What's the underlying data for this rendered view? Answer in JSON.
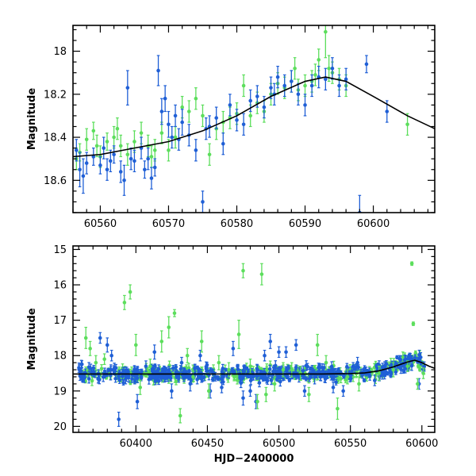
{
  "chart_data": [
    {
      "type": "scatter",
      "ylabel": "Magnitude",
      "xlabel": "",
      "xlim": [
        60556,
        60609
      ],
      "ylim": [
        18.75,
        17.88
      ],
      "y_inverted": true,
      "xticks": [
        60560,
        60570,
        60580,
        60590,
        60600
      ],
      "yticks": [
        18.0,
        18.2,
        18.4,
        18.6
      ],
      "ytick_labels": [
        "18",
        "18.2",
        "18.4",
        "18.6"
      ],
      "colors": {
        "blue": "#1f5fd6",
        "green": "#5cde5c",
        "curve": "#000000"
      },
      "model_curve": {
        "x": [
          60556,
          60560,
          60565,
          60570,
          60575,
          60580,
          60585,
          60590,
          60593,
          60596,
          60600,
          60605,
          60609
        ],
        "y": [
          18.49,
          18.48,
          18.45,
          18.42,
          18.37,
          18.3,
          18.21,
          18.14,
          18.12,
          18.14,
          18.21,
          18.3,
          18.36
        ]
      },
      "series": [
        {
          "points": [
            [
              60556.5,
              18.46,
              0.05
            ],
            [
              60557,
              18.55,
              0.08
            ],
            [
              60557.5,
              18.58,
              0.08
            ],
            [
              60558,
              18.52,
              0.05
            ],
            [
              60559,
              18.49,
              0.04
            ],
            [
              60560,
              18.53,
              0.04
            ],
            [
              60560.5,
              18.45,
              0.05
            ],
            [
              60561,
              18.55,
              0.05
            ],
            [
              60561.5,
              18.51,
              0.05
            ],
            [
              60562,
              18.48,
              0.04
            ],
            [
              60563,
              18.56,
              0.05
            ],
            [
              60563.5,
              18.6,
              0.07
            ],
            [
              60564,
              18.17,
              0.08
            ],
            [
              60564.5,
              18.5,
              0.05
            ],
            [
              60565,
              18.51,
              0.05
            ],
            [
              60566,
              18.45,
              0.05
            ],
            [
              60566.5,
              18.55,
              0.04
            ],
            [
              60567,
              18.5,
              0.05
            ],
            [
              60567.5,
              18.59,
              0.05
            ],
            [
              60568,
              18.54,
              0.04
            ],
            [
              60568.5,
              18.09,
              0.07
            ],
            [
              60569,
              18.28,
              0.06
            ],
            [
              60569.5,
              18.22,
              0.06
            ],
            [
              60570,
              18.34,
              0.06
            ],
            [
              60570.5,
              18.4,
              0.05
            ],
            [
              60571,
              18.3,
              0.05
            ],
            [
              60571.5,
              18.41,
              0.05
            ],
            [
              60572,
              18.33,
              0.06
            ],
            [
              60573,
              18.39,
              0.05
            ],
            [
              60574,
              18.46,
              0.05
            ],
            [
              60575,
              18.7,
              0.05
            ],
            [
              60575.5,
              18.36,
              0.05
            ],
            [
              60576,
              18.35,
              0.05
            ],
            [
              60577,
              18.31,
              0.05
            ],
            [
              60578,
              18.43,
              0.05
            ],
            [
              60579,
              18.25,
              0.05
            ],
            [
              60580,
              18.32,
              0.05
            ],
            [
              60581,
              18.34,
              0.05
            ],
            [
              60582,
              18.23,
              0.05
            ],
            [
              60583,
              18.21,
              0.05
            ],
            [
              60584,
              18.26,
              0.05
            ],
            [
              60585,
              18.17,
              0.05
            ],
            [
              60585.5,
              18.2,
              0.05
            ],
            [
              60586,
              18.12,
              0.05
            ],
            [
              60587,
              18.16,
              0.05
            ],
            [
              60588,
              18.14,
              0.05
            ],
            [
              60589,
              18.2,
              0.05
            ],
            [
              60590,
              18.25,
              0.05
            ],
            [
              60591,
              18.16,
              0.05
            ],
            [
              60592,
              18.12,
              0.05
            ],
            [
              60593,
              18.13,
              0.05
            ],
            [
              60594,
              18.08,
              0.05
            ],
            [
              60595,
              18.16,
              0.05
            ],
            [
              60596,
              18.13,
              0.05
            ],
            [
              60598,
              18.75,
              0.08
            ],
            [
              60599,
              18.06,
              0.04
            ],
            [
              60602,
              18.28,
              0.05
            ]
          ]
        },
        {
          "points": [
            [
              60556.5,
              18.5,
              0.05
            ],
            [
              60557,
              18.47,
              0.04
            ],
            [
              60558,
              18.41,
              0.05
            ],
            [
              60559,
              18.37,
              0.04
            ],
            [
              60559.5,
              18.44,
              0.05
            ],
            [
              60560,
              18.49,
              0.05
            ],
            [
              60561,
              18.42,
              0.04
            ],
            [
              60562,
              18.4,
              0.05
            ],
            [
              60562.5,
              18.36,
              0.05
            ],
            [
              60563,
              18.44,
              0.05
            ],
            [
              60564,
              18.48,
              0.05
            ],
            [
              60565,
              18.42,
              0.05
            ],
            [
              60566,
              18.38,
              0.05
            ],
            [
              60567,
              18.44,
              0.05
            ],
            [
              60567.5,
              18.49,
              0.05
            ],
            [
              60568,
              18.46,
              0.05
            ],
            [
              60569,
              18.38,
              0.05
            ],
            [
              60570,
              18.46,
              0.05
            ],
            [
              60571,
              18.4,
              0.05
            ],
            [
              60572,
              18.26,
              0.05
            ],
            [
              60573,
              18.28,
              0.05
            ],
            [
              60574,
              18.22,
              0.05
            ],
            [
              60575,
              18.3,
              0.05
            ],
            [
              60576,
              18.48,
              0.05
            ],
            [
              60577,
              18.36,
              0.05
            ],
            [
              60578,
              18.33,
              0.05
            ],
            [
              60579,
              18.31,
              0.05
            ],
            [
              60580,
              18.29,
              0.05
            ],
            [
              60581,
              18.16,
              0.05
            ],
            [
              60582,
              18.3,
              0.05
            ],
            [
              60583,
              18.24,
              0.05
            ],
            [
              60584,
              18.28,
              0.05
            ],
            [
              60585,
              18.2,
              0.05
            ],
            [
              60586,
              18.15,
              0.05
            ],
            [
              60587,
              18.17,
              0.05
            ],
            [
              60588,
              18.14,
              0.05
            ],
            [
              60588.5,
              18.08,
              0.05
            ],
            [
              60589,
              18.18,
              0.05
            ],
            [
              60590,
              18.16,
              0.05
            ],
            [
              60591,
              18.14,
              0.05
            ],
            [
              60591.5,
              18.11,
              0.05
            ],
            [
              60592,
              18.04,
              0.05
            ],
            [
              60593,
              17.91,
              0.12
            ],
            [
              60593.5,
              18.08,
              0.06
            ],
            [
              60594,
              18.1,
              0.05
            ],
            [
              60595,
              18.13,
              0.05
            ],
            [
              60596,
              18.16,
              0.05
            ],
            [
              60605,
              18.34,
              0.05
            ]
          ]
        }
      ]
    },
    {
      "type": "scatter",
      "xlabel": "HJD−2400000",
      "ylabel": "Magnitude",
      "xlim": [
        60356,
        60609
      ],
      "ylim": [
        20.17,
        14.9
      ],
      "y_inverted": true,
      "xticks": [
        60400,
        60450,
        60500,
        60550,
        60600
      ],
      "yticks": [
        15,
        16,
        17,
        18,
        19,
        20
      ],
      "ytick_labels": [
        "15",
        "16",
        "17",
        "18",
        "19",
        "20"
      ],
      "colors": {
        "blue": "#1f5fd6",
        "green": "#5cde5c",
        "curve": "#000000"
      },
      "model_curve": {
        "x": [
          60356,
          60400,
          60450,
          60500,
          60530,
          60550,
          60560,
          60570,
          60580,
          60590,
          60595,
          60600,
          60605,
          60609
        ],
        "y": [
          18.52,
          18.52,
          18.52,
          18.52,
          18.52,
          18.51,
          18.49,
          18.43,
          18.32,
          18.18,
          18.13,
          18.2,
          18.3,
          18.36
        ]
      },
      "series": [
        {
          "outliers": [
            [
              60375,
              17.5,
              0.15
            ],
            [
              60380,
              17.7,
              0.2
            ],
            [
              60383,
              18.0,
              0.15
            ],
            [
              60388,
              19.8,
              0.2
            ],
            [
              60395,
              18.6,
              0.15
            ],
            [
              60401,
              19.3,
              0.2
            ],
            [
              60407,
              18.3,
              0.15
            ],
            [
              60413,
              17.9,
              0.2
            ],
            [
              60420,
              18.6,
              0.15
            ],
            [
              60425,
              19.0,
              0.2
            ],
            [
              60432,
              18.2,
              0.15
            ],
            [
              60438,
              18.8,
              0.2
            ],
            [
              60445,
              18.0,
              0.15
            ],
            [
              60452,
              19.0,
              0.2
            ],
            [
              60460,
              18.9,
              0.15
            ],
            [
              60468,
              17.8,
              0.2
            ],
            [
              60475,
              19.2,
              0.2
            ],
            [
              60480,
              19.0,
              0.15
            ],
            [
              60484,
              19.3,
              0.2
            ],
            [
              60490,
              18.0,
              0.15
            ],
            [
              60494,
              17.6,
              0.2
            ],
            [
              60500,
              17.9,
              0.15
            ],
            [
              60505,
              17.9,
              0.15
            ],
            [
              60512,
              17.7,
              0.15
            ],
            [
              60518,
              19.0,
              0.15
            ],
            [
              60525,
              18.6,
              0.2
            ],
            [
              60532,
              18.6,
              0.15
            ],
            [
              60538,
              18.9,
              0.15
            ],
            [
              60545,
              19.0,
              0.15
            ],
            [
              60555,
              18.2,
              0.15
            ],
            [
              60567,
              18.7,
              0.15
            ],
            [
              60590,
              18.1,
              0.1
            ],
            [
              60598,
              18.8,
              0.15
            ]
          ]
        },
        {
          "outliers": [
            [
              60365,
              17.5,
              0.3
            ],
            [
              60368,
              17.8,
              0.2
            ],
            [
              60372,
              18.2,
              0.2
            ],
            [
              60378,
              18.1,
              0.15
            ],
            [
              60392,
              16.5,
              0.2
            ],
            [
              60396,
              16.2,
              0.2
            ],
            [
              60400,
              17.7,
              0.3
            ],
            [
              60403,
              18.9,
              0.2
            ],
            [
              60410,
              18.3,
              0.2
            ],
            [
              60418,
              17.6,
              0.3
            ],
            [
              60423,
              17.2,
              0.3
            ],
            [
              60427,
              16.8,
              0.1
            ],
            [
              60431,
              19.7,
              0.2
            ],
            [
              60436,
              18.0,
              0.2
            ],
            [
              60440,
              18.6,
              0.15
            ],
            [
              60446,
              17.6,
              0.3
            ],
            [
              60451,
              19.0,
              0.2
            ],
            [
              60458,
              18.2,
              0.2
            ],
            [
              60465,
              18.4,
              0.2
            ],
            [
              60472,
              17.4,
              0.4
            ],
            [
              60475,
              15.6,
              0.2
            ],
            [
              60480,
              18.3,
              0.2
            ],
            [
              60485,
              19.3,
              0.2
            ],
            [
              60488,
              15.7,
              0.3
            ],
            [
              60491,
              19.1,
              0.2
            ],
            [
              60497,
              18.8,
              0.2
            ],
            [
              60503,
              18.4,
              0.2
            ],
            [
              60509,
              18.4,
              0.2
            ],
            [
              60515,
              18.5,
              0.2
            ],
            [
              60521,
              19.1,
              0.2
            ],
            [
              60527,
              17.7,
              0.3
            ],
            [
              60533,
              18.2,
              0.2
            ],
            [
              60541,
              19.5,
              0.3
            ],
            [
              60548,
              18.6,
              0.2
            ],
            [
              60556,
              18.8,
              0.2
            ],
            [
              60570,
              18.5,
              0.2
            ],
            [
              60580,
              18.4,
              0.2
            ],
            [
              60590,
              18.3,
              0.15
            ],
            [
              60593,
              15.4,
              0.05
            ],
            [
              60594,
              17.1,
              0.05
            ],
            [
              60597,
              18.8,
              0.15
            ],
            [
              60601,
              18.5,
              0.15
            ]
          ]
        }
      ]
    }
  ]
}
